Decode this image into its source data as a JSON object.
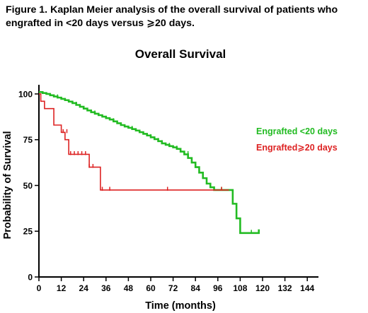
{
  "figure": {
    "caption_line1": "Figure 1. Kaplan Meier analysis of the overall survival of patients who",
    "caption_line2": "engrafted in <20 days versus ⩾20 days."
  },
  "chart_data": {
    "type": "line",
    "title": "Overall Survival",
    "xlabel": "Time (months)",
    "ylabel": "Probability of Survival",
    "xlim": [
      0,
      150
    ],
    "ylim": [
      0,
      105
    ],
    "x_ticks": [
      0,
      12,
      24,
      36,
      48,
      60,
      72,
      84,
      96,
      108,
      120,
      132,
      144
    ],
    "y_ticks": [
      0,
      25,
      50,
      75,
      100
    ],
    "grid": false,
    "legend_position": "right",
    "series": [
      {
        "name": "Engrafted <20 days",
        "color": "#22bb22",
        "step_x": [
          0,
          2,
          4,
          6,
          8,
          10,
          12,
          14,
          16,
          18,
          20,
          22,
          24,
          26,
          28,
          30,
          32,
          34,
          36,
          38,
          40,
          42,
          44,
          46,
          48,
          50,
          52,
          54,
          56,
          58,
          60,
          62,
          64,
          66,
          68,
          70,
          72,
          74,
          76,
          78,
          80,
          82,
          84,
          86,
          88,
          90,
          92,
          94,
          96,
          98,
          100,
          104,
          106,
          108,
          110,
          114,
          118
        ],
        "step_y": [
          101,
          100.5,
          100,
          99.3,
          98.6,
          98,
          97.3,
          96.6,
          95.8,
          95,
          94,
          93,
          92,
          91,
          90,
          89.2,
          88.4,
          87.6,
          86.8,
          86,
          85,
          84,
          83,
          82.2,
          81.5,
          80.8,
          80,
          79.1,
          78.2,
          77.3,
          76.3,
          75.3,
          74.2,
          73,
          72.2,
          71.5,
          70.8,
          70,
          68.5,
          67,
          65,
          62.5,
          60,
          57,
          54,
          51,
          49,
          47.5,
          47.5,
          47.5,
          47.5,
          40,
          32,
          24,
          24,
          24,
          26
        ],
        "censor_x": [
          10,
          20,
          30,
          40,
          50,
          60,
          64,
          66,
          70,
          74,
          80,
          86,
          90,
          98,
          114
        ],
        "censor_y": [
          98,
          94,
          89.2,
          85,
          80.8,
          76.3,
          74.2,
          73,
          71.5,
          70,
          67,
          57,
          51,
          47.5,
          24
        ]
      },
      {
        "name": "Engrafted⩾20 days",
        "color": "#dd2222",
        "step_x": [
          0,
          1,
          3,
          8,
          12,
          14,
          16,
          24,
          27,
          33,
          46,
          68,
          90,
          102
        ],
        "step_y": [
          100,
          96,
          92,
          83,
          79,
          75,
          67,
          67,
          60,
          47.5,
          47.5,
          47.5,
          47.5,
          47.5
        ],
        "censor_x": [
          13,
          15,
          17,
          19,
          21,
          23,
          25,
          27,
          29,
          34,
          38,
          69,
          98
        ],
        "censor_y": [
          79,
          79,
          67,
          67,
          67,
          67,
          67,
          60,
          60,
          47.5,
          47.5,
          47.5,
          47.5
        ]
      }
    ]
  }
}
